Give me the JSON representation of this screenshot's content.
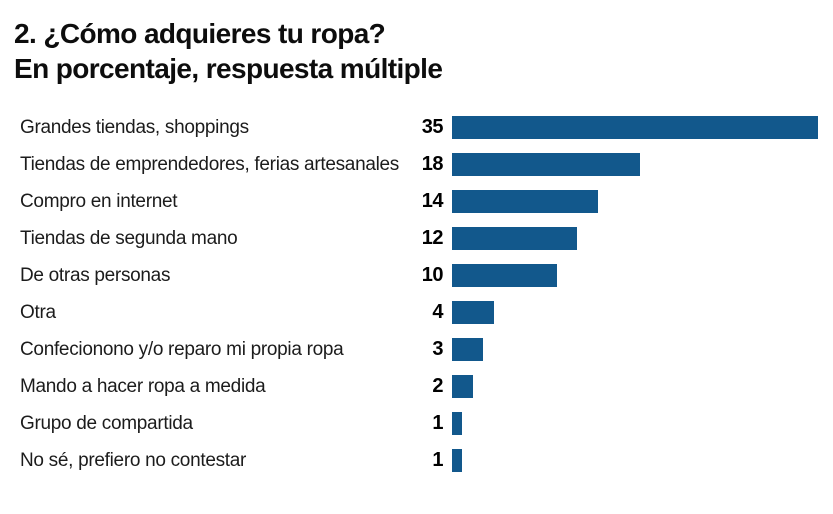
{
  "header": {
    "title": "2. ¿Cómo adquieres tu ropa?",
    "subtitle": "En porcentaje, respuesta múltiple"
  },
  "chart_data": {
    "type": "bar",
    "orientation": "horizontal",
    "title": "2. ¿Cómo adquieres tu ropa?",
    "subtitle": "En porcentaje, respuesta múltiple",
    "categories": [
      "Grandes tiendas, shoppings",
      "Tiendas de emprendedores, ferias artesanales",
      "Compro en internet",
      "Tiendas de segunda mano",
      "De otras personas",
      "Otra",
      "Confecionono y/o reparo mi propia ropa",
      "Mando a hacer ropa a medida",
      "Grupo de compartida",
      "No sé, prefiero no contestar"
    ],
    "values": [
      35,
      18,
      14,
      12,
      10,
      4,
      3,
      2,
      1,
      1
    ],
    "value_labels_shown": true,
    "xlim": [
      0,
      35
    ],
    "xlabel": "",
    "ylabel": "",
    "grid": false,
    "legend": false,
    "bar_color": "#12588c",
    "text_color": "#0d0d0d",
    "background_color": "#ffffff"
  }
}
